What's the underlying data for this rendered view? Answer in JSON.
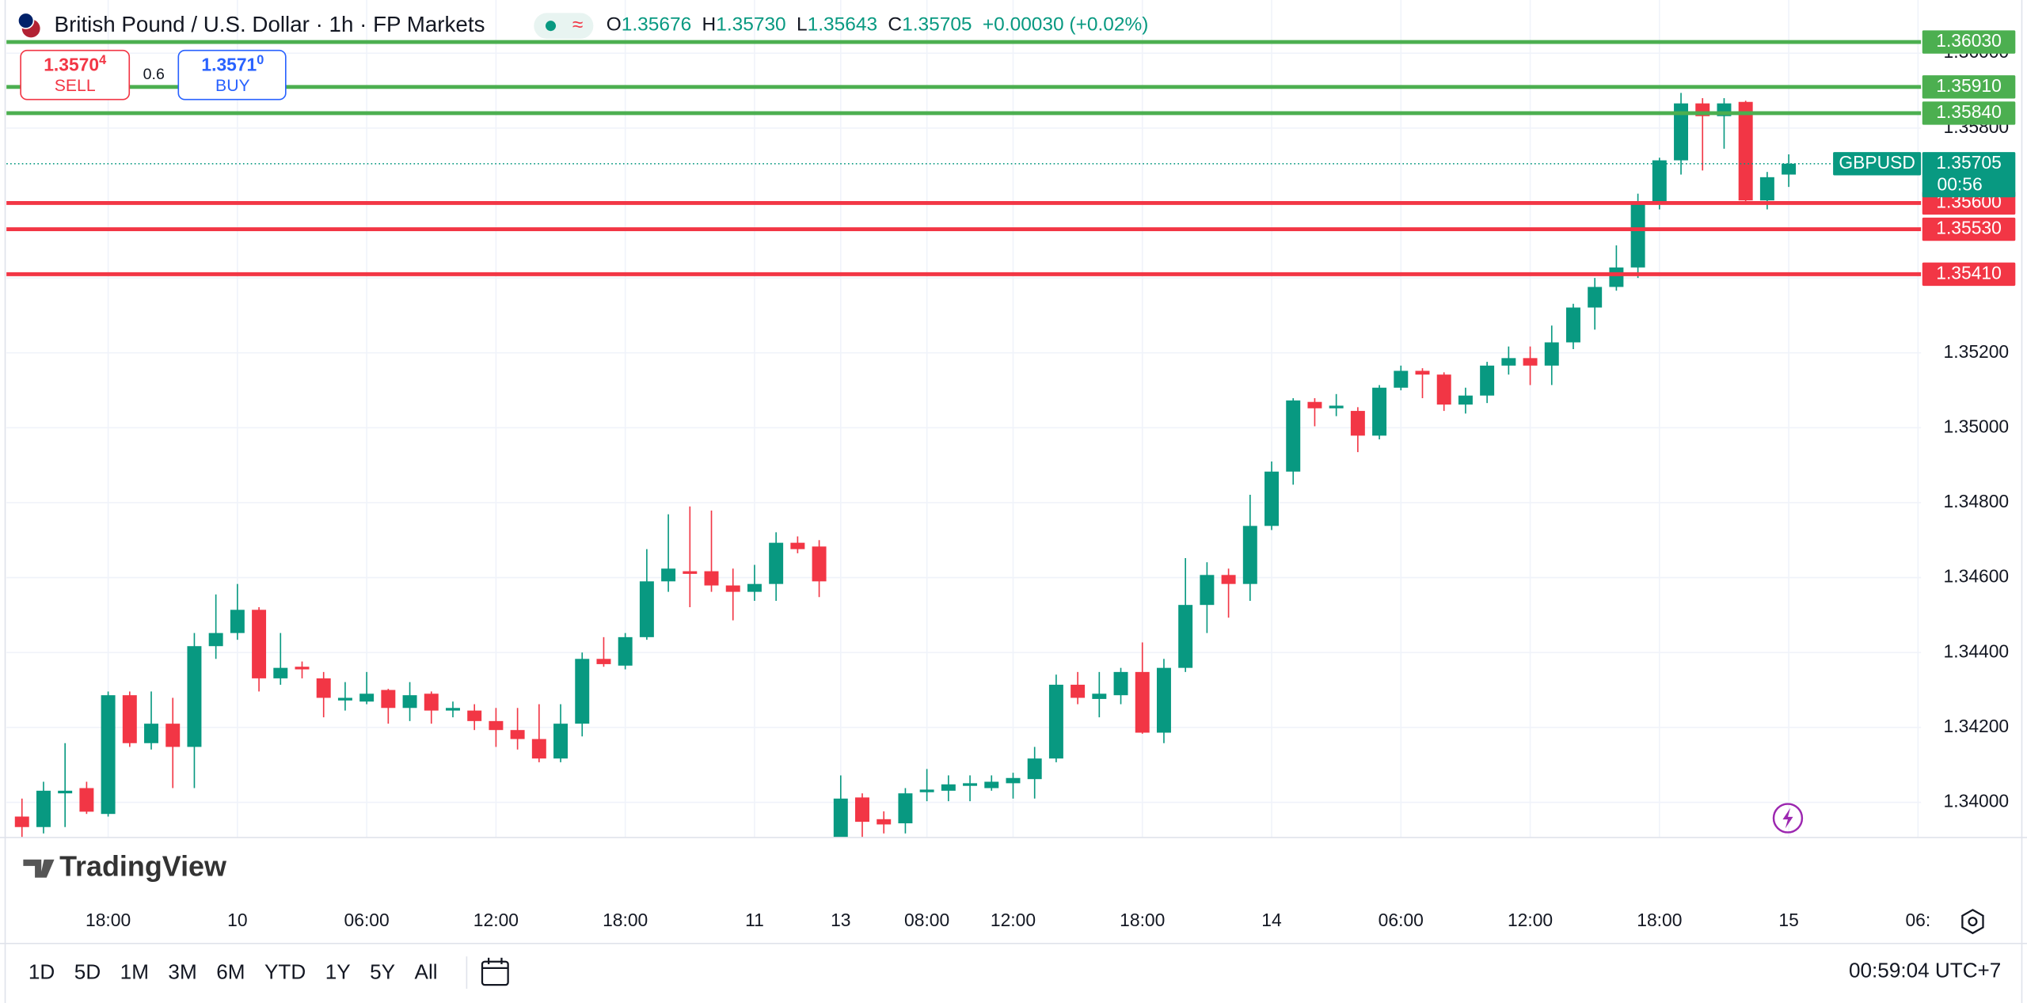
{
  "chart_data": {
    "type": "candlestick",
    "title": "British Pound / U.S. Dollar · 1h · FP Markets",
    "categories": [
      null,
      null,
      null,
      null,
      "18:00",
      null,
      null,
      null,
      null,
      null,
      "10",
      null,
      null,
      null,
      null,
      null,
      "06:00",
      null,
      null,
      null,
      null,
      null,
      "12:00",
      null,
      null,
      null,
      null,
      null,
      "18:00",
      null,
      null,
      null,
      null,
      null,
      "11",
      null,
      null,
      null,
      "13",
      null,
      null,
      null,
      "08:00",
      null,
      null,
      null,
      "12:00",
      null,
      null,
      null,
      null,
      null,
      "18:00",
      null,
      null,
      null,
      null,
      null,
      "14",
      null,
      null,
      null,
      null,
      null,
      "06:00",
      null,
      null,
      null,
      null,
      null,
      "12:00",
      null,
      null,
      null,
      null,
      null,
      "18:00",
      null,
      null,
      null,
      null,
      null,
      "15",
      null,
      null,
      null,
      null,
      null,
      "06:"
    ],
    "open": [
      1.33962,
      1.33934,
      1.34024,
      1.34038,
      1.33969,
      1.34286,
      1.34158,
      1.3421,
      1.34148,
      1.34417,
      1.34452,
      1.34514,
      1.34331,
      1.34362,
      1.34331,
      1.34272,
      1.34269,
      1.343,
      1.34252,
      1.3429,
      1.34245,
      1.34245,
      1.34217,
      1.34193,
      1.34169,
      1.34117,
      1.3421,
      1.34383,
      1.34365,
      1.34441,
      1.3459,
      1.34617,
      1.34617,
      1.34579,
      1.34562,
      1.34583,
      1.34693,
      1.34683,
      1.33906,
      1.34013,
      1.33955,
      1.33944,
      1.34027,
      1.34031,
      1.34044,
      1.34038,
      1.34051,
      1.34062,
      1.34117,
      1.34314,
      1.34276,
      1.34286,
      1.34348,
      1.34186,
      1.34359,
      1.34527,
      1.34607,
      1.34583,
      1.34738,
      1.34883,
      1.35069,
      1.35052,
      1.35045,
      1.34979,
      1.35107,
      1.35152,
      1.35142,
      1.35062,
      1.35086,
      1.35166,
      1.35186,
      1.35166,
      1.35228,
      1.35321,
      1.35376,
      1.35428,
      1.356,
      1.35714,
      1.35866,
      1.35832,
      1.3587,
      1.35607,
      1.35676,
      null,
      null,
      null,
      null,
      null,
      null
    ],
    "high": [
      1.3401,
      1.34055,
      1.34158,
      1.34055,
      1.34296,
      1.34296,
      1.34296,
      1.34279,
      1.34452,
      1.34555,
      1.34583,
      1.34521,
      1.34452,
      1.34376,
      1.34348,
      1.34321,
      1.34348,
      1.34303,
      1.34321,
      1.34296,
      1.34269,
      1.34262,
      1.34252,
      1.34252,
      1.34262,
      1.34262,
      1.344,
      1.34441,
      1.34452,
      1.34676,
      1.34769,
      1.3479,
      1.34779,
      1.34624,
      1.34634,
      1.34721,
      1.3471,
      1.347,
      1.34072,
      1.34024,
      1.33976,
      1.34038,
      1.34089,
      1.34072,
      1.34072,
      1.34072,
      1.34079,
      1.34148,
      1.34341,
      1.34348,
      1.34348,
      1.34359,
      1.34427,
      1.34383,
      1.34652,
      1.34641,
      1.34624,
      1.34821,
      1.3491,
      1.35079,
      1.35079,
      1.3509,
      1.35055,
      1.35114,
      1.35166,
      1.35159,
      1.35148,
      1.35107,
      1.35176,
      1.35217,
      1.35217,
      1.35273,
      1.35331,
      1.354,
      1.35487,
      1.35625,
      1.35721,
      1.35894,
      1.3588,
      1.3588,
      1.35873,
      1.35683,
      1.3573,
      null,
      null,
      null,
      null,
      null,
      null
    ],
    "low": [
      1.33906,
      1.33917,
      1.33934,
      1.33969,
      1.33962,
      1.34148,
      1.34141,
      1.34038,
      1.34038,
      1.34383,
      1.34434,
      1.34296,
      1.34314,
      1.34331,
      1.34227,
      1.34245,
      1.34262,
      1.3421,
      1.34217,
      1.3421,
      1.34227,
      1.34193,
      1.34148,
      1.34141,
      1.34107,
      1.34107,
      1.34176,
      1.34362,
      1.34355,
      1.34434,
      1.34562,
      1.34521,
      1.34562,
      1.34486,
      1.34538,
      1.34538,
      1.34665,
      1.34548,
      1.33906,
      1.33906,
      1.33917,
      1.33917,
      1.34003,
      1.34003,
      1.34003,
      1.34031,
      1.3401,
      1.3401,
      1.34107,
      1.34262,
      1.34227,
      1.34262,
      1.34183,
      1.34158,
      1.34348,
      1.34452,
      1.34493,
      1.34538,
      1.34727,
      1.34848,
      1.35004,
      1.35031,
      1.34935,
      1.34969,
      1.351,
      1.35079,
      1.35045,
      1.35038,
      1.35066,
      1.35142,
      1.35114,
      1.35114,
      1.3521,
      1.35262,
      1.35366,
      1.354,
      1.35583,
      1.35676,
      1.35687,
      1.35745,
      1.356,
      1.35583,
      1.35643,
      null,
      null,
      null,
      null,
      null,
      null
    ],
    "close": [
      1.33934,
      1.34031,
      1.34031,
      1.33975,
      1.34286,
      1.34158,
      1.3421,
      1.34148,
      1.34417,
      1.34452,
      1.34514,
      1.34331,
      1.34359,
      1.34355,
      1.34279,
      1.34279,
      1.3429,
      1.34252,
      1.34286,
      1.34245,
      1.34252,
      1.34217,
      1.34193,
      1.34169,
      1.34117,
      1.3421,
      1.34383,
      1.34369,
      1.34441,
      1.3459,
      1.34624,
      1.3461,
      1.34579,
      1.34562,
      1.34583,
      1.34693,
      1.34676,
      1.3459,
      1.3401,
      1.33948,
      1.33941,
      1.34024,
      1.34034,
      1.34048,
      1.34051,
      1.34055,
      1.34065,
      1.34117,
      1.34314,
      1.34279,
      1.3429,
      1.34348,
      1.34186,
      1.34359,
      1.34527,
      1.34607,
      1.34583,
      1.34738,
      1.34883,
      1.35073,
      1.35052,
      1.35059,
      1.34979,
      1.35107,
      1.35152,
      1.35142,
      1.35062,
      1.35086,
      1.35166,
      1.35186,
      1.35166,
      1.35228,
      1.35321,
      1.35376,
      1.35428,
      1.356,
      1.35714,
      1.35866,
      1.35832,
      1.35866,
      1.35607,
      1.35669,
      1.35705,
      null,
      null,
      null,
      null,
      null,
      null
    ],
    "up_color": "#089981",
    "down_color": "#f23645",
    "ylim": [
      1.33906,
      1.36142
    ],
    "yticks": [
      {
        "value": 1.34,
        "label": "1.34000"
      },
      {
        "value": 1.342,
        "label": "1.34200"
      },
      {
        "value": 1.344,
        "label": "1.34400"
      },
      {
        "value": 1.346,
        "label": "1.34600"
      },
      {
        "value": 1.348,
        "label": "1.34800"
      },
      {
        "value": 1.35,
        "label": "1.35000"
      },
      {
        "value": 1.352,
        "label": "1.35200"
      },
      {
        "value": 1.354,
        "label": "1.35400"
      },
      {
        "value": 1.356,
        "label": "1.35600"
      },
      {
        "value": 1.358,
        "label": "1.35800"
      },
      {
        "value": 1.36,
        "label": "1.36000"
      }
    ],
    "grid": true,
    "levels": [
      {
        "value": 1.3603,
        "label": "1.36030",
        "color": "#4caf50"
      },
      {
        "value": 1.3591,
        "label": "1.35910",
        "color": "#4caf50"
      },
      {
        "value": 1.3584,
        "label": "1.35840",
        "color": "#4caf50"
      },
      {
        "value": 1.356,
        "label": "1.35600",
        "color": "#f23645"
      },
      {
        "value": 1.3553,
        "label": "1.35530",
        "color": "#f23645"
      },
      {
        "value": 1.3541,
        "label": "1.35410",
        "color": "#f23645"
      }
    ],
    "last_price": {
      "value": 1.35705,
      "label": "1.35705",
      "symbol": "GBPUSD",
      "countdown": "00:56",
      "color": "#089981"
    }
  },
  "header": {
    "ohlc": [
      {
        "key": "O",
        "value": "1.35676"
      },
      {
        "key": "H",
        "value": "1.35730"
      },
      {
        "key": "L",
        "value": "1.35643"
      },
      {
        "key": "C",
        "value": "1.35705"
      }
    ],
    "change": "+0.00030 (+0.02%)"
  },
  "trade": {
    "sell_price": "1.3570",
    "sell_pip": "4",
    "sell_label": "SELL",
    "spread": "0.6",
    "buy_price": "1.3571",
    "buy_pip": "0",
    "buy_label": "BUY"
  },
  "logo": "TradingView",
  "timeframes": [
    "1D",
    "5D",
    "1M",
    "3M",
    "6M",
    "YTD",
    "1Y",
    "5Y",
    "All"
  ],
  "clock": "00:59:04 UTC+7"
}
